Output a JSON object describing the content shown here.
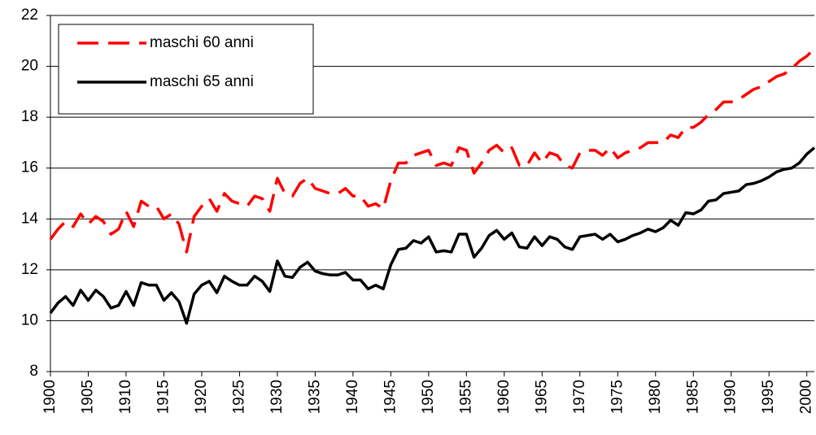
{
  "chart_data": {
    "type": "line",
    "x": [
      1900,
      1901,
      1902,
      1903,
      1904,
      1905,
      1906,
      1907,
      1908,
      1909,
      1910,
      1911,
      1912,
      1913,
      1914,
      1915,
      1916,
      1917,
      1918,
      1919,
      1920,
      1921,
      1922,
      1923,
      1924,
      1925,
      1926,
      1927,
      1928,
      1929,
      1930,
      1931,
      1932,
      1933,
      1934,
      1935,
      1936,
      1937,
      1938,
      1939,
      1940,
      1941,
      1942,
      1943,
      1944,
      1945,
      1946,
      1947,
      1948,
      1949,
      1950,
      1951,
      1952,
      1953,
      1954,
      1955,
      1956,
      1957,
      1958,
      1959,
      1960,
      1961,
      1962,
      1963,
      1964,
      1965,
      1966,
      1967,
      1968,
      1969,
      1970,
      1971,
      1972,
      1973,
      1974,
      1975,
      1976,
      1977,
      1978,
      1979,
      1980,
      1981,
      1982,
      1983,
      1984,
      1985,
      1986,
      1987,
      1988,
      1989,
      1990,
      1991,
      1992,
      1993,
      1994,
      1995,
      1996,
      1997,
      1998,
      1999,
      2000,
      2001
    ],
    "series": [
      {
        "name": "maschi 60 anni",
        "color": "#ff0000",
        "dashed": true,
        "values": [
          13.2,
          13.6,
          13.9,
          13.7,
          14.2,
          13.8,
          14.1,
          13.9,
          13.4,
          13.6,
          14.3,
          13.7,
          14.7,
          14.5,
          14.5,
          14.0,
          14.2,
          13.8,
          12.7,
          14.1,
          14.5,
          14.8,
          14.3,
          15.0,
          14.7,
          14.6,
          14.5,
          14.9,
          14.8,
          14.3,
          15.6,
          15.0,
          14.9,
          15.4,
          15.6,
          15.2,
          15.1,
          15.0,
          15.0,
          15.2,
          14.9,
          14.9,
          14.5,
          14.6,
          14.4,
          15.5,
          16.2,
          16.2,
          16.5,
          16.6,
          16.7,
          16.1,
          16.2,
          16.1,
          16.8,
          16.7,
          15.8,
          16.2,
          16.7,
          16.9,
          16.6,
          16.8,
          16.1,
          16.1,
          16.6,
          16.2,
          16.6,
          16.5,
          16.1,
          16.0,
          16.6,
          16.7,
          16.7,
          16.5,
          16.8,
          16.4,
          16.6,
          16.7,
          16.8,
          17.0,
          17.0,
          17.0,
          17.3,
          17.2,
          17.6,
          17.6,
          17.8,
          18.1,
          18.3,
          18.6,
          18.6,
          18.7,
          18.9,
          19.1,
          19.2,
          19.4,
          19.6,
          19.7,
          19.9,
          20.2,
          20.4,
          20.7
        ]
      },
      {
        "name": "maschi 65 anni",
        "color": "#000000",
        "dashed": false,
        "values": [
          10.3,
          10.7,
          10.95,
          10.6,
          11.2,
          10.8,
          11.2,
          10.95,
          10.5,
          10.6,
          11.15,
          10.6,
          11.5,
          11.4,
          11.4,
          10.8,
          11.1,
          10.75,
          9.9,
          11.05,
          11.4,
          11.55,
          11.1,
          11.75,
          11.55,
          11.4,
          11.4,
          11.75,
          11.55,
          11.15,
          12.35,
          11.75,
          11.7,
          12.1,
          12.3,
          11.95,
          11.85,
          11.8,
          11.8,
          11.9,
          11.6,
          11.6,
          11.25,
          11.4,
          11.25,
          12.2,
          12.8,
          12.85,
          13.15,
          13.05,
          13.3,
          12.7,
          12.75,
          12.7,
          13.4,
          13.4,
          12.5,
          12.85,
          13.35,
          13.55,
          13.2,
          13.45,
          12.9,
          12.85,
          13.3,
          12.95,
          13.3,
          13.2,
          12.9,
          12.8,
          13.3,
          13.35,
          13.4,
          13.2,
          13.4,
          13.1,
          13.2,
          13.35,
          13.45,
          13.6,
          13.5,
          13.65,
          13.95,
          13.75,
          14.25,
          14.2,
          14.35,
          14.7,
          14.75,
          15.0,
          15.05,
          15.1,
          15.35,
          15.4,
          15.5,
          15.65,
          15.85,
          15.95,
          16.0,
          16.2,
          16.55,
          16.8
        ]
      }
    ],
    "xlim": [
      1900,
      2001
    ],
    "xticks": [
      1900,
      1905,
      1910,
      1915,
      1920,
      1925,
      1930,
      1935,
      1940,
      1945,
      1950,
      1955,
      1960,
      1965,
      1970,
      1975,
      1980,
      1985,
      1990,
      1995,
      2000
    ],
    "ylim": [
      8,
      22
    ],
    "yticks": [
      8,
      10,
      12,
      14,
      16,
      18,
      20,
      22
    ],
    "grid": true,
    "legend": "top-left"
  }
}
